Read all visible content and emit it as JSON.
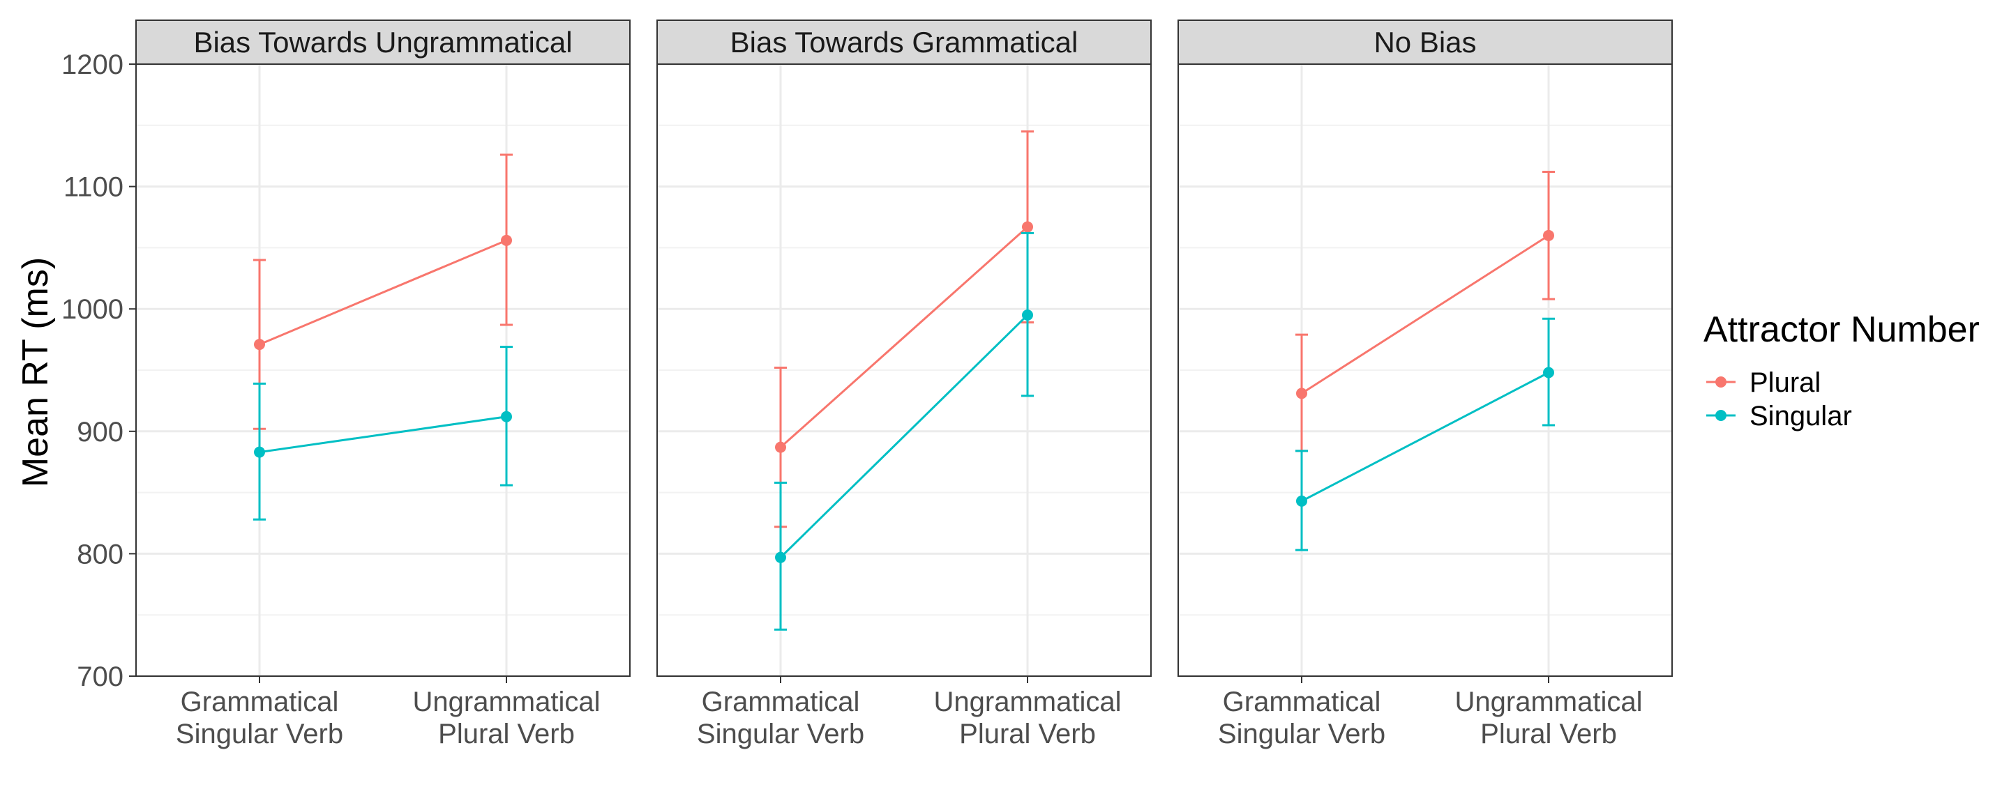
{
  "chart_data": {
    "type": "line",
    "ylabel": "Mean RT (ms)",
    "xlabel": "",
    "ylim": [
      700,
      1200
    ],
    "yticks": [
      700,
      800,
      900,
      1000,
      1100,
      1200
    ],
    "categories": [
      [
        "Grammatical",
        "Singular Verb"
      ],
      [
        "Ungrammatical",
        "Plural Verb"
      ]
    ],
    "grid": true,
    "legend": {
      "title": "Attractor Number",
      "placement": "right"
    },
    "series_colors": {
      "Plural": "#F8766D",
      "Singular": "#00BFC4"
    },
    "panels": [
      {
        "title": "Bias Towards Ungrammatical",
        "series": [
          {
            "name": "Plural",
            "values": [
              971,
              1056
            ],
            "lower": [
              902,
              987
            ],
            "upper": [
              1040,
              1126
            ]
          },
          {
            "name": "Singular",
            "values": [
              883,
              912
            ],
            "lower": [
              828,
              856
            ],
            "upper": [
              939,
              969
            ]
          }
        ]
      },
      {
        "title": "Bias Towards Grammatical",
        "series": [
          {
            "name": "Plural",
            "values": [
              887,
              1067
            ],
            "lower": [
              822,
              989
            ],
            "upper": [
              952,
              1145
            ]
          },
          {
            "name": "Singular",
            "values": [
              797,
              995
            ],
            "lower": [
              738,
              929
            ],
            "upper": [
              858,
              1062
            ]
          }
        ]
      },
      {
        "title": "No Bias",
        "series": [
          {
            "name": "Plural",
            "values": [
              931,
              1060
            ],
            "lower": [
              884,
              1008
            ],
            "upper": [
              979,
              1112
            ]
          },
          {
            "name": "Singular",
            "values": [
              843,
              948
            ],
            "lower": [
              803,
              905
            ],
            "upper": [
              884,
              992
            ]
          }
        ]
      }
    ]
  }
}
